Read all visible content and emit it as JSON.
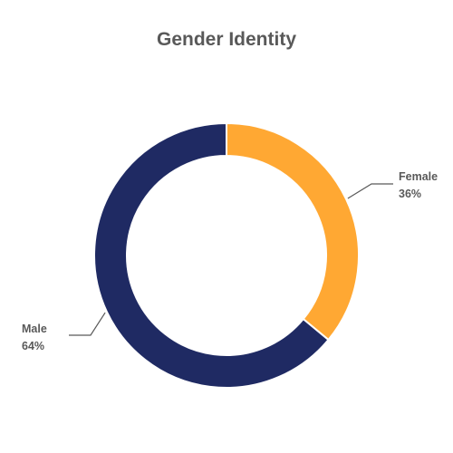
{
  "chart_data": {
    "type": "pie",
    "variant": "donut",
    "title": "Gender Identity",
    "slices": [
      {
        "label": "Female",
        "value": 36,
        "value_text": "36%",
        "color": "#FFA833"
      },
      {
        "label": "Male",
        "value": 64,
        "value_text": "64%",
        "color": "#1F2A63"
      }
    ],
    "start_angle_deg": 0,
    "direction": "clockwise",
    "legend": "none",
    "label_color": "#595959",
    "leader_line_color": "#595959"
  }
}
